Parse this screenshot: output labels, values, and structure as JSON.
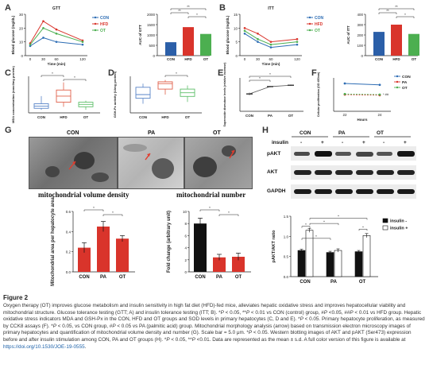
{
  "panels": {
    "A": "A",
    "B": "B",
    "C": "C",
    "D": "D",
    "E": "E",
    "F": "F",
    "G": "G",
    "H": "H",
    "I": "I"
  },
  "colors": {
    "con": "#2e6db4",
    "hfd_pa": "#d9342b",
    "ot": "#4caf50",
    "bar_con": "#2b5fa8",
    "bar_hfd": "#d9342b",
    "bar_ot": "#4caf50",
    "box_con": "#5a86c8",
    "box_hfd": "#e0604a",
    "box_ot": "#5fbf6a",
    "bar_g_fill": "#d9342b",
    "bar_h_insulin_minus": "#111111",
    "bar_h_insulin_plus": "#ffffff"
  },
  "chart_data": [
    {
      "id": "A-gtt-line",
      "type": "line",
      "title": "GTT",
      "xlabel": "Time (min)",
      "ylabel": "Blood glucose (mg/dL)",
      "x": [
        0,
        30,
        60,
        120
      ],
      "xlim": [
        0,
        120
      ],
      "ylim": [
        0,
        30
      ],
      "yticks": [
        0,
        10,
        20,
        30
      ],
      "legend": [
        "CON",
        "HFD",
        "OT"
      ],
      "legend_position": "right",
      "series": [
        {
          "name": "CON",
          "values": [
            7,
            13,
            10,
            8
          ]
        },
        {
          "name": "HFD",
          "values": [
            9,
            25,
            19,
            11
          ]
        },
        {
          "name": "OT",
          "values": [
            8,
            20,
            16,
            10
          ]
        }
      ]
    },
    {
      "id": "A-gtt-auc",
      "type": "bar",
      "ylabel": "AUC of GTT",
      "categories": [
        "CON",
        "HFD",
        "OT"
      ],
      "values": [
        650,
        1380,
        1050
      ],
      "ylim": [
        0,
        2000
      ],
      "yticks": [
        0,
        500,
        1000,
        1500,
        2000
      ],
      "significance": [
        "**",
        "**",
        "*"
      ]
    },
    {
      "id": "B-itt-line",
      "type": "line",
      "title": "ITT",
      "xlabel": "Time (min)",
      "ylabel": "Blood glucose (mg/dL)",
      "x": [
        0,
        30,
        60,
        120
      ],
      "xlim": [
        0,
        120
      ],
      "ylim": [
        0,
        15
      ],
      "yticks": [
        0,
        5,
        10,
        15
      ],
      "legend": [
        "CON",
        "HFD",
        "OT"
      ],
      "legend_position": "right",
      "series": [
        {
          "name": "CON",
          "values": [
            8,
            5,
            3,
            4
          ]
        },
        {
          "name": "HFD",
          "values": [
            10,
            8,
            5,
            6
          ]
        },
        {
          "name": "OT",
          "values": [
            9,
            6,
            4,
            5
          ]
        }
      ]
    },
    {
      "id": "B-itt-auc",
      "type": "bar",
      "ylabel": "AUC of ITT",
      "categories": [
        "CON",
        "HFD",
        "OT"
      ],
      "values": [
        230,
        300,
        210
      ],
      "ylim": [
        0,
        400
      ],
      "yticks": [
        0,
        100,
        200,
        300,
        400
      ],
      "significance": [
        "**",
        "**",
        "*"
      ]
    },
    {
      "id": "C-mda-box",
      "type": "box",
      "ylabel": "MDA concentration (nmol/mg protein)",
      "categories": [
        "CON",
        "HFD",
        "OT"
      ],
      "boxes": [
        {
          "min": 0.1,
          "q1": 0.15,
          "median": 0.22,
          "q3": 0.3,
          "max": 0.55
        },
        {
          "min": 0.2,
          "q1": 0.35,
          "median": 0.55,
          "q3": 0.75,
          "max": 1.0
        },
        {
          "min": 0.1,
          "q1": 0.2,
          "median": 0.28,
          "q3": 0.35,
          "max": 0.4
        }
      ],
      "ylim": [
        0,
        1.2
      ],
      "significance": [
        "*",
        "*"
      ]
    },
    {
      "id": "D-gsh-box",
      "type": "box",
      "ylabel": "GSH-Px activity (U/mg protein)",
      "categories": [
        "CON",
        "HFD",
        "OT"
      ],
      "boxes": [
        {
          "min": 5,
          "q1": 8,
          "median": 10,
          "q3": 14,
          "max": 16
        },
        {
          "min": 10,
          "q1": 13,
          "median": 16,
          "q3": 17,
          "max": 18
        },
        {
          "min": 6,
          "q1": 9,
          "median": 11,
          "q3": 13,
          "max": 15
        }
      ],
      "ylim": [
        0,
        20
      ],
      "significance": [
        "*"
      ]
    },
    {
      "id": "E-tmrm",
      "type": "line",
      "ylabel": "Superoxide dismutase levels (relative increase)",
      "categories": [
        "CON",
        "PA",
        "OT"
      ],
      "values": [
        1.3,
        1.85,
        1.95
      ],
      "errors": [
        0.1,
        0.05,
        0.05
      ],
      "ylim": [
        0,
        2.5
      ],
      "significance": [
        "*",
        "*"
      ]
    },
    {
      "id": "F-cck8",
      "type": "line",
      "xlabel": "Hours",
      "ylabel": "Cellular proliferation (OD 450nm)",
      "x": [
        22,
        24
      ],
      "ylim": [
        0,
        1.2
      ],
      "legend": [
        "CON",
        "PA",
        "OT"
      ],
      "legend_position": "top-right",
      "series": [
        {
          "name": "CON",
          "values": [
            1.0,
            0.95
          ]
        },
        {
          "name": "PA",
          "values": [
            0.6,
            0.58
          ]
        },
        {
          "name": "OT",
          "values": [
            0.62,
            0.6
          ]
        }
      ],
      "significance": [
        "* ##"
      ]
    },
    {
      "id": "G-mito-area",
      "type": "bar",
      "ylabel": "Mitochondrial area per hepatocyte area",
      "categories": [
        "CON",
        "PA",
        "OT"
      ],
      "values": [
        0.24,
        0.45,
        0.33
      ],
      "errors": [
        0.05,
        0.05,
        0.03
      ],
      "ylim": [
        0,
        0.6
      ],
      "yticks": [
        0.0,
        0.2,
        0.4,
        0.6
      ],
      "significance": [
        "*",
        "*"
      ]
    },
    {
      "id": "G-fold-change",
      "type": "bar",
      "ylabel": "Fold change (arbitrary unit)",
      "categories": [
        "CON",
        "PA",
        "OT"
      ],
      "values": [
        8,
        2.4,
        2.5
      ],
      "errors": [
        0.9,
        0.5,
        0.6
      ],
      "ylim": [
        0,
        10
      ],
      "yticks": [
        0,
        2,
        4,
        6,
        8,
        10
      ],
      "significance": [
        "*",
        "*"
      ]
    },
    {
      "id": "H-pakt-ratio",
      "type": "bar",
      "ylabel": "pAKT/AKT ratio",
      "categories": [
        "CON",
        "PA",
        "OT"
      ],
      "series": [
        {
          "name": "insulin -",
          "values": [
            0.65,
            0.6,
            0.62
          ]
        },
        {
          "name": "insulin +",
          "values": [
            1.15,
            0.65,
            1.02
          ]
        }
      ],
      "errors": [
        [
          0.03,
          0.03,
          0.03
        ],
        [
          0.05,
          0.04,
          0.05
        ]
      ],
      "ylim": [
        0,
        1.5
      ],
      "yticks": [
        0.0,
        0.5,
        1.0,
        1.5
      ],
      "legend_position": "top-right",
      "significance": [
        "*",
        "*",
        "*",
        "*",
        "*"
      ]
    }
  ],
  "panel_g": {
    "micro_labels": [
      "CON",
      "PA",
      "OT"
    ],
    "caption_left": "mitochondrial volume density",
    "caption_right": "mitochondrial number"
  },
  "panel_h": {
    "group_labels": [
      "CON",
      "PA",
      "OT"
    ],
    "insulin_label": "insulin",
    "lane_signs": [
      "-",
      "+",
      "-",
      "+",
      "-",
      "+"
    ],
    "rows": [
      "pAKT",
      "AKT",
      "GAPDH"
    ]
  },
  "figure": {
    "label": "Figure 2",
    "caption_parts": [
      "Oxygen therapy (OT) improves glucose metabolism and insulin sensitivity in high fat diet (HFD)-fed mice, alleviates hepatic oxidative stress and improves hepatocellular viability and mitochondrial structure. Glucose tolerance testing (GTT; A) and insulin tolerance testing (ITT; B). *",
      "P",
      " < 0.05, **",
      "P",
      " < 0.01 vs CON (control) group, #",
      "P",
      " <0.05, ##",
      "P",
      " < 0.01 vs HFD group. Hepatic oxidative stress indicators MDA and GSH-Px in the CON, HFD and OT groups and SOD levels in primary hepatocytes (C, D and E). *",
      "P",
      " < 0.05. Primary hepatocyte proliferation, as measured by CCK8 assays (F). *",
      "P",
      " < 0.05, vs CON group, #",
      "P",
      " < 0.05 vs PA (palmitic acid) group. Mitochondrial morphology analysis (arrow) based on transmission electron microscopy images of primary hepatocytes and quantification of mitochondrial volume density and number (G). Scale bar = 5.0 μm. *",
      "P",
      " < 0.05. Western blotting images of AKT and pAKT (Ser473) expression before and after insulin stimulation among CON, PA and OT groups (H). *",
      "P",
      " < 0.05, **",
      "P",
      " <0.01. Data are represented as the mean ± s.d. A full color version of this figure is available at "
    ],
    "caption_link": "https://doi.org/10.1530/JOE-19-0555",
    "caption_end": "."
  }
}
